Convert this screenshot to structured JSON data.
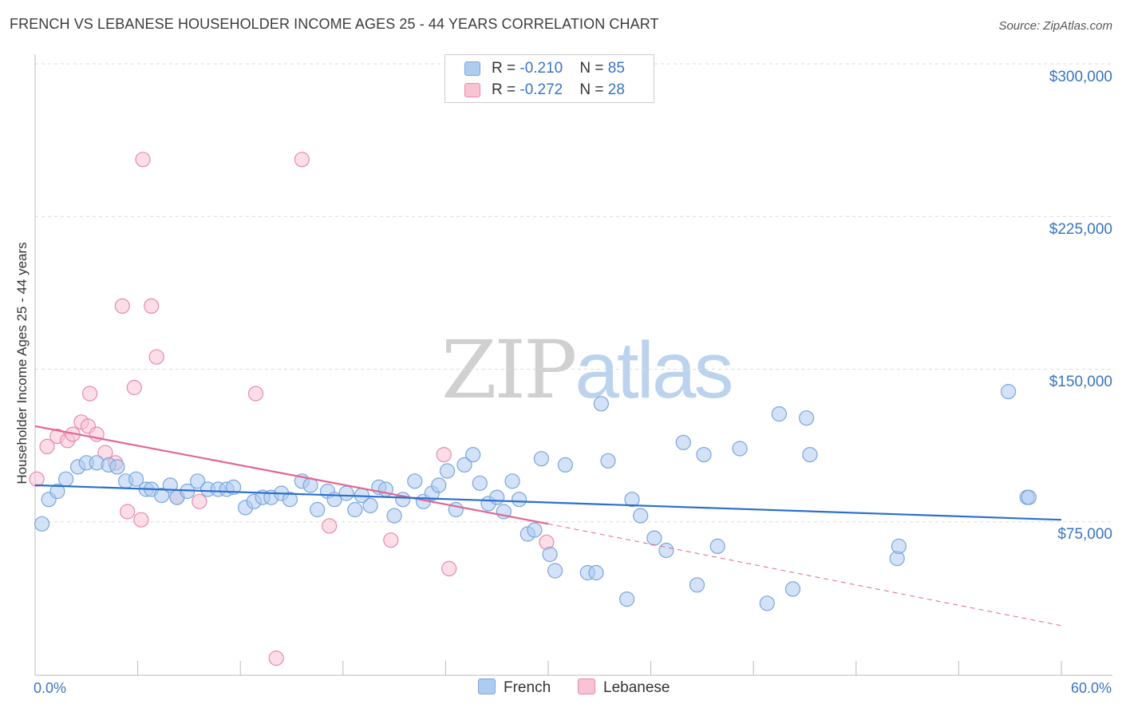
{
  "title": "FRENCH VS LEBANESE HOUSEHOLDER INCOME AGES 25 - 44 YEARS CORRELATION CHART",
  "source": "Source: ZipAtlas.com",
  "watermark": {
    "zip": "ZIP",
    "atlas": "atlas"
  },
  "colors": {
    "french_fill": "#aecbf0",
    "french_stroke": "#7aa6dd",
    "french_line": "#2a6fcf",
    "lebanese_fill": "#f8c3d3",
    "lebanese_stroke": "#e98aa8",
    "lebanese_line": "#e2668f",
    "axis_text": "#3a74c4"
  },
  "legend": {
    "rows": [
      {
        "r_label": "R = ",
        "r_value": "-0.210",
        "n_label": "N = ",
        "n_value": "85"
      },
      {
        "r_label": "R = ",
        "r_value": "-0.272",
        "n_label": "N = ",
        "n_value": "28"
      }
    ]
  },
  "bottom_legend": {
    "french": "French",
    "lebanese": "Lebanese"
  },
  "chart_data": {
    "type": "scatter",
    "title": "FRENCH VS LEBANESE HOUSEHOLDER INCOME AGES 25 - 44 YEARS CORRELATION CHART",
    "xlabel": "",
    "ylabel": "Householder Income Ages 25 - 44 years",
    "xlim": [
      0,
      60
    ],
    "ylim": [
      0,
      310000
    ],
    "x_tick_labels": [
      "0.0%",
      "60.0%"
    ],
    "y_ticks": [
      75000,
      150000,
      225000,
      300000
    ],
    "y_tick_labels": [
      "$75,000",
      "$150,000",
      "$225,000",
      "$300,000"
    ],
    "grid": "horizontal dashed",
    "legend_position": "top-center",
    "series": [
      {
        "name": "French",
        "r": -0.21,
        "n": 85,
        "trend": {
          "x": [
            0,
            60
          ],
          "y": [
            93000,
            76000
          ]
        },
        "points": [
          [
            0.4,
            74000
          ],
          [
            0.8,
            86000
          ],
          [
            1.3,
            90000
          ],
          [
            1.8,
            96000
          ],
          [
            2.5,
            102000
          ],
          [
            3.0,
            104000
          ],
          [
            3.6,
            104000
          ],
          [
            4.3,
            103000
          ],
          [
            4.8,
            102000
          ],
          [
            5.3,
            95000
          ],
          [
            5.9,
            96000
          ],
          [
            6.5,
            91000
          ],
          [
            6.8,
            91000
          ],
          [
            7.4,
            88000
          ],
          [
            7.9,
            93000
          ],
          [
            8.3,
            87000
          ],
          [
            8.9,
            90000
          ],
          [
            9.5,
            95000
          ],
          [
            10.1,
            91000
          ],
          [
            10.7,
            91000
          ],
          [
            11.2,
            91000
          ],
          [
            11.6,
            92000
          ],
          [
            12.3,
            82000
          ],
          [
            12.8,
            85000
          ],
          [
            13.3,
            87000
          ],
          [
            13.8,
            87000
          ],
          [
            14.4,
            89000
          ],
          [
            14.9,
            86000
          ],
          [
            15.6,
            95000
          ],
          [
            16.1,
            93000
          ],
          [
            16.5,
            81000
          ],
          [
            17.1,
            90000
          ],
          [
            17.5,
            86000
          ],
          [
            18.2,
            89000
          ],
          [
            18.7,
            81000
          ],
          [
            19.1,
            88000
          ],
          [
            19.6,
            83000
          ],
          [
            20.1,
            92000
          ],
          [
            20.5,
            91000
          ],
          [
            21.0,
            78000
          ],
          [
            21.5,
            86000
          ],
          [
            22.2,
            95000
          ],
          [
            22.7,
            85000
          ],
          [
            23.2,
            89000
          ],
          [
            23.6,
            93000
          ],
          [
            24.1,
            100000
          ],
          [
            24.6,
            81000
          ],
          [
            25.1,
            103000
          ],
          [
            25.6,
            108000
          ],
          [
            26.0,
            94000
          ],
          [
            26.5,
            84000
          ],
          [
            27.0,
            87000
          ],
          [
            27.4,
            80000
          ],
          [
            27.9,
            95000
          ],
          [
            28.3,
            86000
          ],
          [
            28.8,
            69000
          ],
          [
            29.2,
            71000
          ],
          [
            29.6,
            106000
          ],
          [
            30.1,
            59000
          ],
          [
            30.4,
            51000
          ],
          [
            31.0,
            103000
          ],
          [
            32.3,
            50000
          ],
          [
            32.8,
            50000
          ],
          [
            33.1,
            133000
          ],
          [
            33.5,
            105000
          ],
          [
            34.6,
            37000
          ],
          [
            34.9,
            86000
          ],
          [
            35.4,
            78000
          ],
          [
            36.2,
            67000
          ],
          [
            36.9,
            61000
          ],
          [
            37.9,
            114000
          ],
          [
            38.7,
            44000
          ],
          [
            39.1,
            108000
          ],
          [
            39.9,
            63000
          ],
          [
            41.2,
            111000
          ],
          [
            42.8,
            35000
          ],
          [
            43.5,
            128000
          ],
          [
            44.3,
            42000
          ],
          [
            45.1,
            126000
          ],
          [
            45.3,
            108000
          ],
          [
            50.4,
            57000
          ],
          [
            50.5,
            63000
          ],
          [
            56.9,
            139000
          ],
          [
            58.0,
            87000
          ],
          [
            58.1,
            87000
          ]
        ]
      },
      {
        "name": "Lebanese",
        "r": -0.272,
        "n": 28,
        "trend": {
          "x": [
            0,
            30
          ],
          "y": [
            122000,
            74000
          ]
        },
        "trend_extension": {
          "x": [
            30,
            60
          ],
          "y": [
            74000,
            24000
          ]
        },
        "points": [
          [
            0.1,
            96000
          ],
          [
            0.7,
            112000
          ],
          [
            1.3,
            117000
          ],
          [
            1.9,
            115000
          ],
          [
            2.2,
            118000
          ],
          [
            2.7,
            124000
          ],
          [
            3.1,
            122000
          ],
          [
            3.2,
            138000
          ],
          [
            3.6,
            118000
          ],
          [
            4.1,
            109000
          ],
          [
            4.7,
            104000
          ],
          [
            5.1,
            181000
          ],
          [
            5.4,
            80000
          ],
          [
            5.8,
            141000
          ],
          [
            6.2,
            76000
          ],
          [
            6.3,
            253000
          ],
          [
            6.8,
            181000
          ],
          [
            7.1,
            156000
          ],
          [
            8.3,
            87000
          ],
          [
            9.6,
            85000
          ],
          [
            12.9,
            138000
          ],
          [
            14.1,
            8000
          ],
          [
            15.6,
            253000
          ],
          [
            17.2,
            73000
          ],
          [
            20.8,
            66000
          ],
          [
            23.9,
            108000
          ],
          [
            24.2,
            52000
          ],
          [
            29.9,
            65000
          ]
        ]
      }
    ]
  }
}
